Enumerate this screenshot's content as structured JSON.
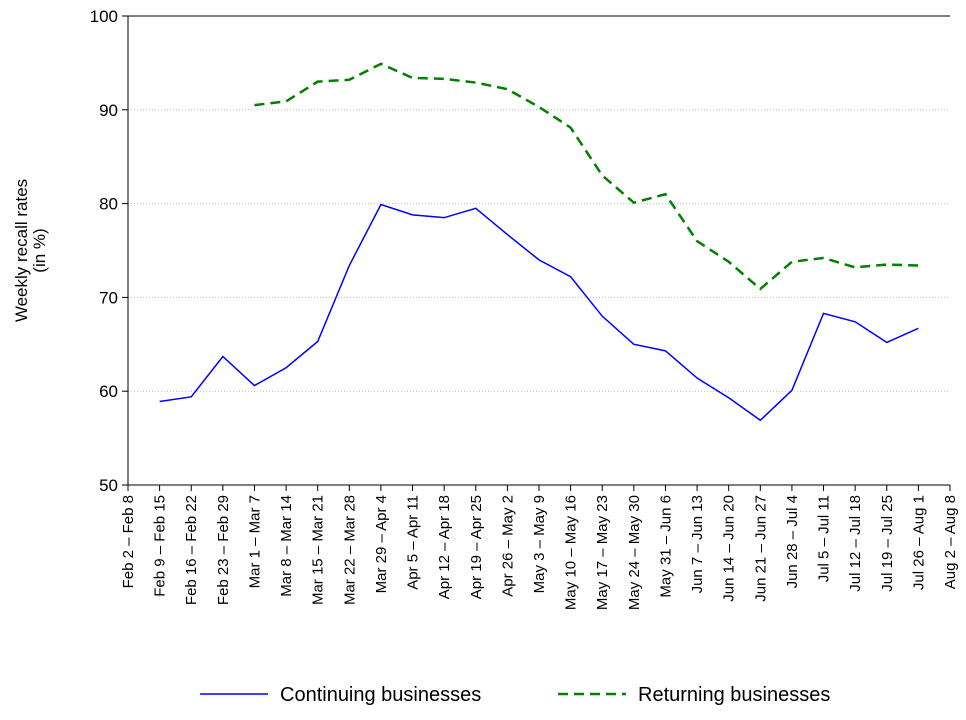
{
  "chart_data": {
    "type": "line",
    "ylabel": [
      "Weekly recall rates",
      "(in %)"
    ],
    "categories": [
      "Feb 2 – Feb 8",
      "Feb 9 – Feb 15",
      "Feb 16 – Feb 22",
      "Feb 23 – Feb 29",
      "Mar 1 – Mar 7",
      "Mar 8 – Mar 14",
      "Mar 15 – Mar 21",
      "Mar 22 – Mar 28",
      "Mar 29 – Apr 4",
      "Apr 5 – Apr 11",
      "Apr 12 – Apr 18",
      "Apr 19 – Apr 25",
      "Apr 26 – May 2",
      "May 3 – May 9",
      "May 10 – May 16",
      "May 17 – May 23",
      "May 24 – May 30",
      "May 31 – Jun 6",
      "Jun 7 – Jun 13",
      "Jun 14 – Jun 20",
      "Jun 21 – Jun 27",
      "Jun 28 – Jul 4",
      "Jul 5 – Jul 11",
      "Jul 12 – Jul 18",
      "Jul 19 – Jul 25",
      "Jul 26 – Aug 1",
      "Aug 2 – Aug 8"
    ],
    "series": [
      {
        "name": "Continuing businesses",
        "color": "#0000ff",
        "dashed": false,
        "values": [
          null,
          58.9,
          59.4,
          63.7,
          60.6,
          62.5,
          65.3,
          73.4,
          79.9,
          78.8,
          78.5,
          79.5,
          76.7,
          74.0,
          72.2,
          68.0,
          65.0,
          64.3,
          61.4,
          59.3,
          56.9,
          60.1,
          68.3,
          67.4,
          65.2,
          66.7,
          null
        ]
      },
      {
        "name": "Returning businesses",
        "color": "#008000",
        "dashed": true,
        "values": [
          null,
          null,
          null,
          null,
          90.5,
          90.9,
          93.0,
          93.2,
          94.9,
          93.4,
          93.3,
          92.9,
          92.2,
          90.3,
          88.1,
          83.0,
          80.1,
          81.0,
          76.0,
          73.8,
          70.9,
          73.8,
          74.2,
          73.2,
          73.5,
          73.4,
          null
        ]
      }
    ],
    "ylim": [
      50,
      100
    ],
    "yticks": [
      50,
      60,
      70,
      80,
      90,
      100
    ],
    "grid": true,
    "legend": "bottom"
  }
}
